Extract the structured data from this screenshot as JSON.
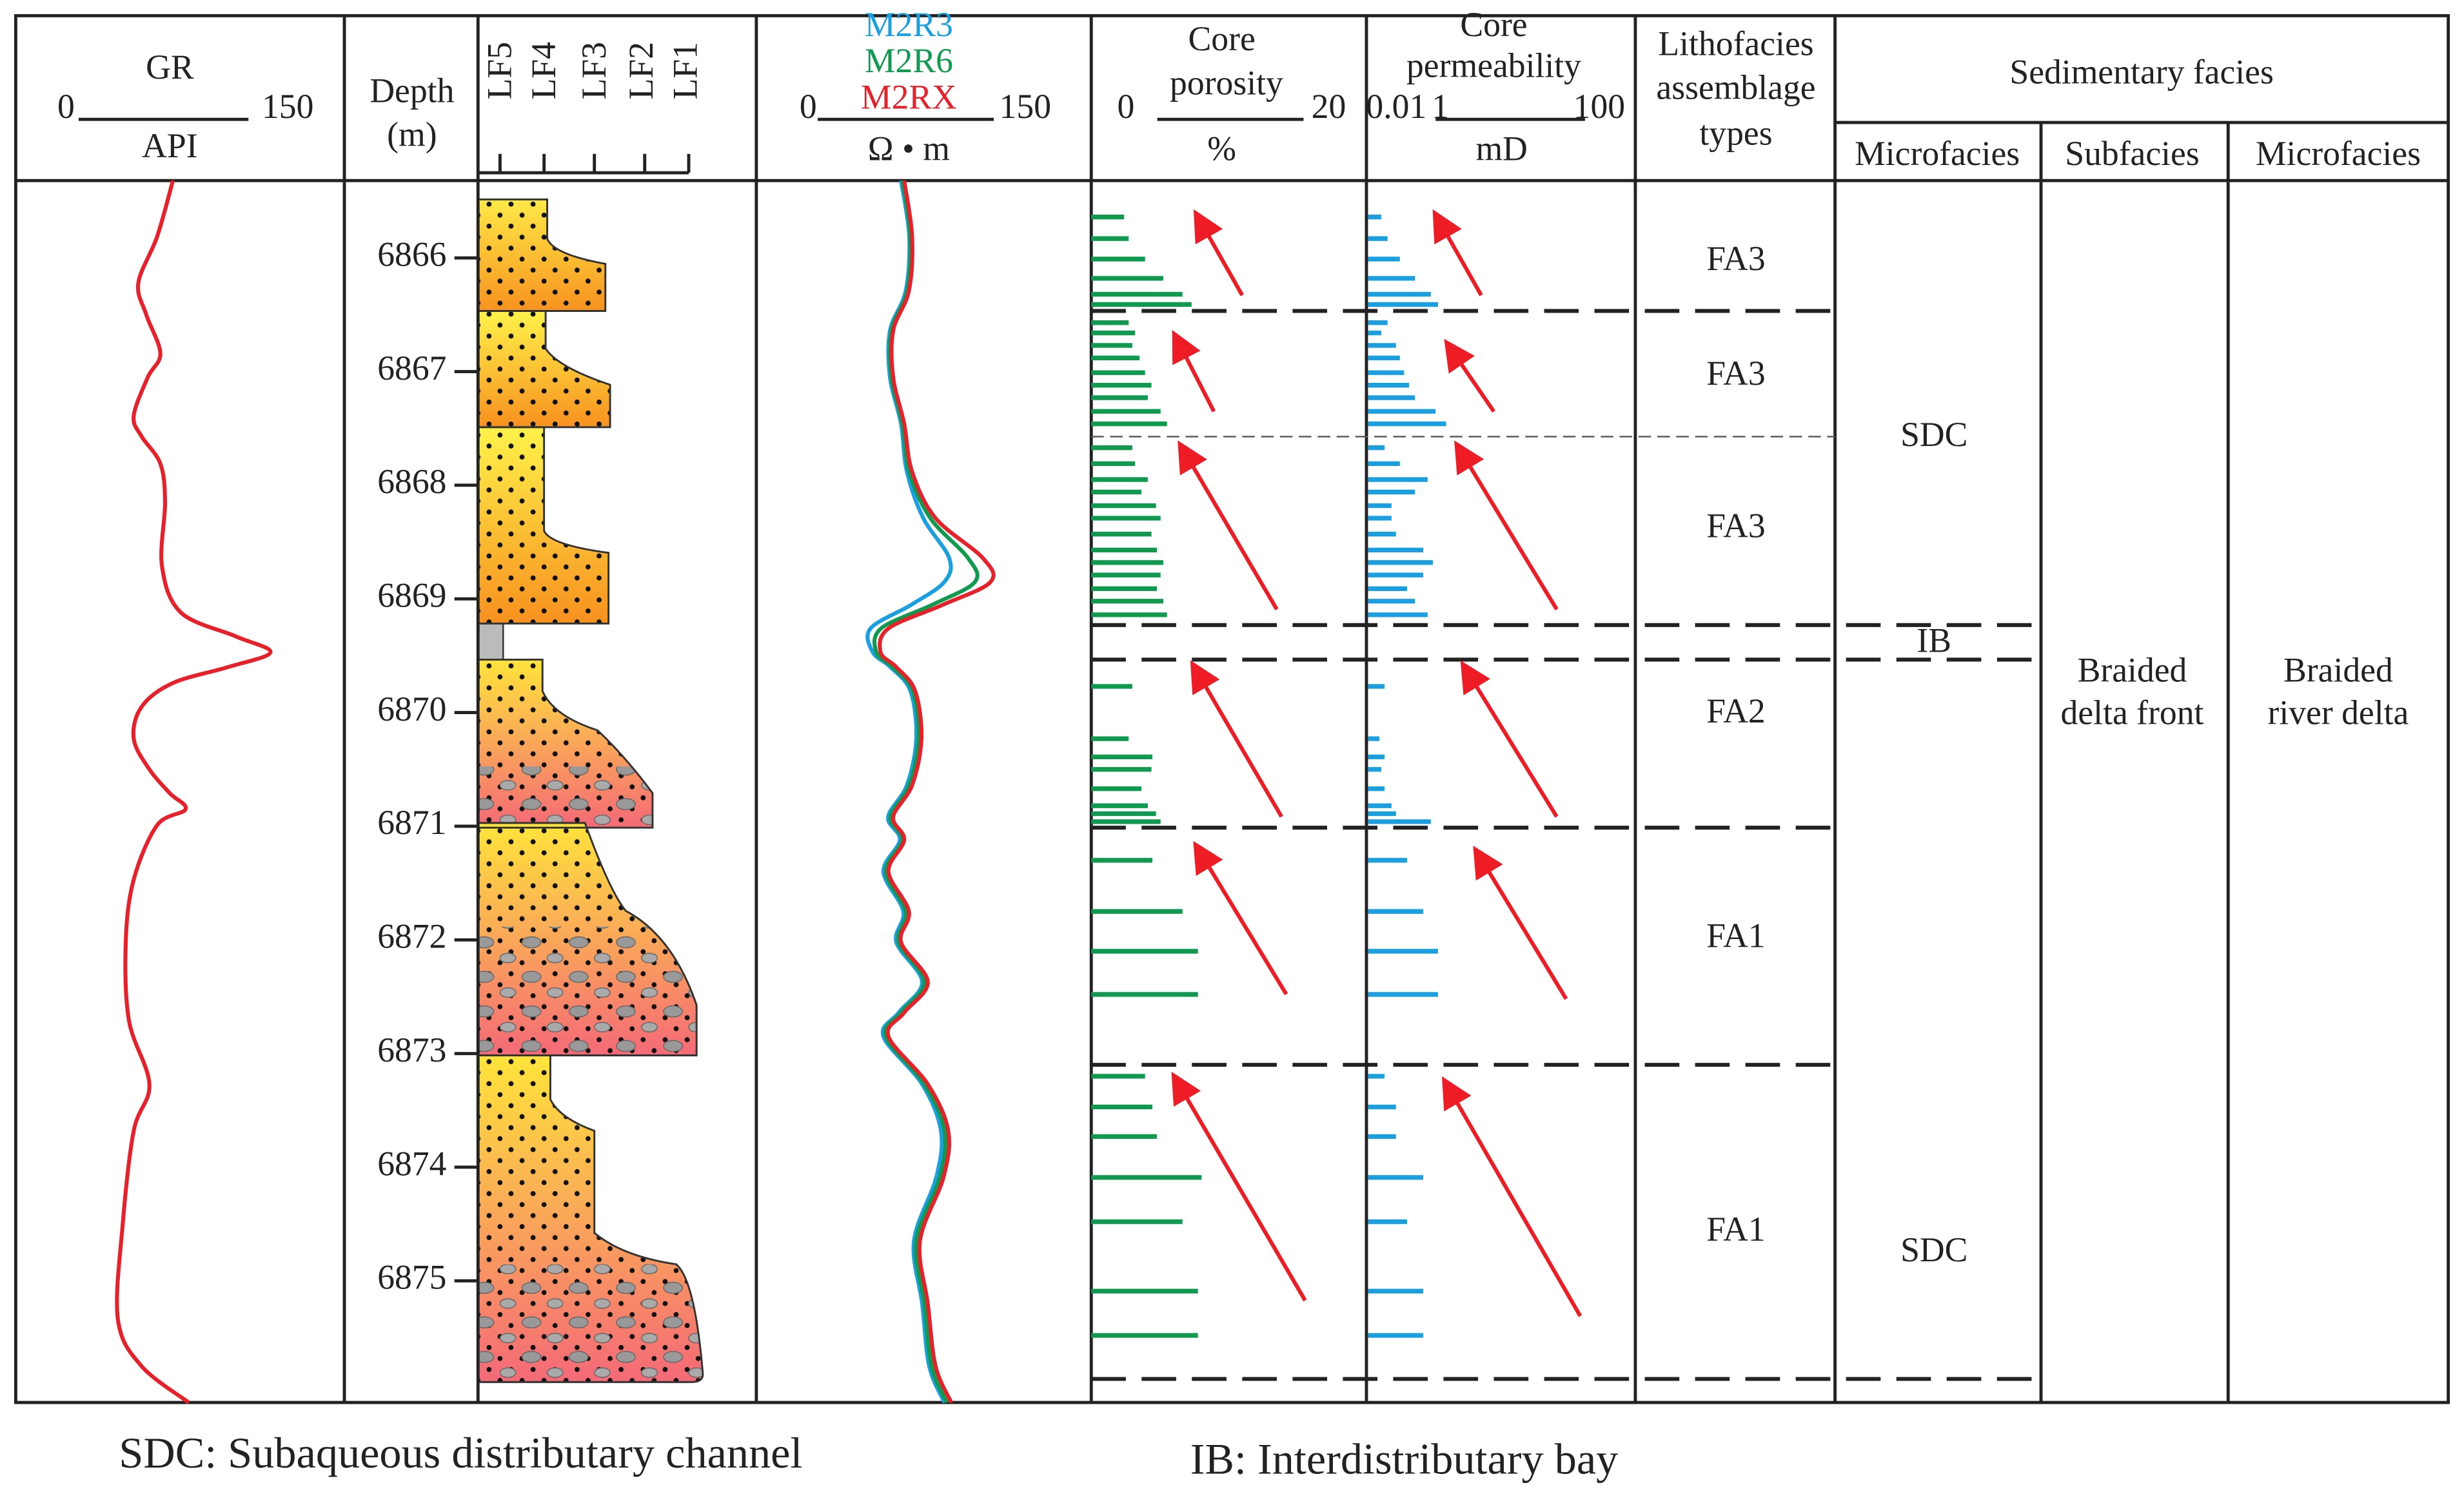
{
  "gr": {
    "name": "GR",
    "unit": "API",
    "xlim": [
      0,
      150
    ],
    "xticks": [
      0,
      150
    ],
    "color": "#e8202a",
    "depth": [
      6865.32,
      6865.81,
      6866.22,
      6866.5,
      6866.84,
      6867.05,
      6867.39,
      6867.57,
      6867.81,
      6868.15,
      6868.71,
      6869.12,
      6869.33,
      6869.47,
      6869.6,
      6869.74,
      6869.95,
      6870.23,
      6870.5,
      6870.71,
      6870.85,
      6870.99,
      6871.47,
      6872.02,
      6872.71,
      6873.27,
      6873.68,
      6874.51,
      6875.34,
      6875.75,
      6876.07
    ],
    "values": [
      84.5,
      70.9,
      54.5,
      61.4,
      73.6,
      62.7,
      50.5,
      57.3,
      73.6,
      77.7,
      75.0,
      91.4,
      139.1,
      169.1,
      132.3,
      84.5,
      57.3,
      50.5,
      64.1,
      81.8,
      95.5,
      70.9,
      50.5,
      43.6,
      46.4,
      64.1,
      50.5,
      40.9,
      36.8,
      57.3,
      98.2
    ]
  },
  "depth_axis": {
    "title": "Depth",
    "unit": "(m)",
    "lim": [
      6865.32,
      6876.07
    ],
    "ticks": [
      6866,
      6867,
      6868,
      6869,
      6870,
      6871,
      6872,
      6873,
      6874,
      6875
    ]
  },
  "lithology": {
    "ticks": [
      "LF5",
      "LF4",
      "LF3",
      "LF2",
      "LF1"
    ]
  },
  "resistivity": {
    "unit": "Ω • m",
    "xlim": [
      0,
      150
    ],
    "xticks": [
      0,
      150
    ],
    "depth": [
      6865.32,
      6865.81,
      6866.29,
      6866.64,
      6867.05,
      6867.46,
      6867.88,
      6868.29,
      6868.64,
      6868.85,
      6869.05,
      6869.26,
      6869.47,
      6869.6,
      6869.81,
      6870.23,
      6870.64,
      6870.92,
      6871.12,
      6871.4,
      6871.75,
      6872.02,
      6872.37,
      6872.64,
      6872.85,
      6873.27,
      6873.68,
      6874.09,
      6874.65,
      6875.2,
      6875.75,
      6876.07
    ],
    "series": [
      {
        "name": "M2R3",
        "color": "#1a9fe0",
        "values": [
          71,
          78,
          75,
          61.6,
          61.6,
          71,
          76,
          90,
          112,
          108,
          80,
          45,
          47,
          62,
          79,
          84,
          76,
          60,
          70,
          56,
          73,
          67,
          89,
          69,
          56,
          89,
          105,
          101,
          82,
          89,
          95,
          108
        ]
      },
      {
        "name": "M2R6",
        "color": "#0f9a50",
        "values": [
          72.3,
          79,
          76.3,
          62.9,
          62.9,
          72.3,
          78,
          96,
          128,
          134,
          98,
          54,
          50,
          64,
          81,
          86,
          78,
          62,
          72,
          58,
          75,
          69,
          91,
          71,
          58,
          91,
          108,
          104,
          84,
          91,
          97,
          110
        ]
      },
      {
        "name": "M2RX",
        "color": "#e8202a",
        "values": [
          73.7,
          80.4,
          77.7,
          64.3,
          64.3,
          73.7,
          80.4,
          100.4,
          140.6,
          147.3,
          107.1,
          60.3,
          53.6,
          67.0,
          83.0,
          88.4,
          80.4,
          64.3,
          73.7,
          60.3,
          77.7,
          71.0,
          93.8,
          73.7,
          60.3,
          93.8,
          111.2,
          107.1,
          87.1,
          93.8,
          100.4,
          113.8
        ]
      }
    ]
  },
  "porosity": {
    "title": [
      "Core",
      "porosity"
    ],
    "unit": "%",
    "xlim": [
      0,
      20
    ],
    "xticks": [
      0,
      20
    ],
    "color": "#0f9a50",
    "depth": [
      6865.64,
      6865.83,
      6866.01,
      6866.18,
      6866.32,
      6866.41,
      6866.57,
      6866.66,
      6866.77,
      6866.88,
      6867.01,
      6867.12,
      6867.23,
      6867.35,
      6867.46,
      6867.67,
      6867.81,
      6867.95,
      6868.06,
      6868.18,
      6868.29,
      6868.43,
      6868.57,
      6868.68,
      6868.79,
      6868.91,
      6869.02,
      6869.14,
      6869.77,
      6870.23,
      6870.39,
      6870.5,
      6870.67,
      6870.82,
      6870.89,
      6870.96,
      6871.3,
      6871.75,
      6872.1,
      6872.48,
      6873.2,
      6873.47,
      6873.73,
      6874.09,
      6874.48,
      6875.09,
      6875.48
    ],
    "values": [
      3.6,
      4.1,
      5.9,
      7.9,
      10.0,
      11.0,
      4.1,
      4.8,
      4.5,
      5.3,
      5.9,
      6.6,
      6.2,
      7.6,
      8.3,
      4.5,
      4.8,
      6.2,
      5.5,
      7.1,
      7.6,
      6.6,
      7.2,
      7.9,
      7.6,
      7.2,
      7.9,
      8.3,
      4.5,
      4.1,
      6.7,
      6.6,
      5.5,
      6.2,
      7.1,
      7.6,
      6.7,
      10.0,
      11.7,
      11.7,
      5.9,
      6.7,
      7.2,
      12.1,
      10.0,
      11.7,
      11.7
    ]
  },
  "permeability": {
    "title": [
      "Core",
      "permeability"
    ],
    "unit": "mD",
    "xlim": [
      0.01,
      100
    ],
    "xticks": [
      0.01,
      1,
      100
    ],
    "log": true,
    "color": "#1a9fe0",
    "depth": [
      6865.64,
      6865.83,
      6866.01,
      6866.18,
      6866.32,
      6866.41,
      6866.57,
      6866.66,
      6866.77,
      6866.88,
      6867.01,
      6867.12,
      6867.23,
      6867.35,
      6867.46,
      6867.67,
      6867.81,
      6867.95,
      6868.06,
      6868.18,
      6868.29,
      6868.43,
      6868.57,
      6868.68,
      6868.79,
      6868.91,
      6869.02,
      6869.14,
      6869.77,
      6870.23,
      6870.39,
      6870.5,
      6870.67,
      6870.82,
      6870.89,
      6870.96,
      6871.3,
      6871.75,
      6872.1,
      6872.48,
      6873.2,
      6873.47,
      6873.73,
      6874.09,
      6874.48,
      6875.09,
      6875.48
    ],
    "values": [
      0.016,
      0.02,
      0.031,
      0.053,
      0.093,
      0.12,
      0.02,
      0.016,
      0.027,
      0.031,
      0.036,
      0.043,
      0.053,
      0.11,
      0.16,
      0.018,
      0.031,
      0.083,
      0.053,
      0.023,
      0.023,
      0.027,
      0.071,
      0.1,
      0.071,
      0.04,
      0.053,
      0.083,
      0.018,
      0.015,
      0.018,
      0.016,
      0.018,
      0.023,
      0.027,
      0.093,
      0.04,
      0.071,
      0.12,
      0.12,
      0.018,
      0.027,
      0.027,
      0.071,
      0.04,
      0.071,
      0.071
    ]
  },
  "assemblage": {
    "title": [
      "Lithofacies",
      "assemblage",
      "types"
    ],
    "labels": [
      "FA3",
      "FA3",
      "FA3",
      "FA2",
      "FA1",
      "FA1"
    ]
  },
  "facies": {
    "title": "Sedimentary facies",
    "columns": [
      "Microfacies",
      "Subfacies",
      "Microfacies"
    ],
    "microfacies": [
      "SDC",
      "IB",
      "SDC"
    ],
    "subfacies": [
      "Braided",
      "delta front"
    ],
    "facies": [
      "Braided",
      "river delta"
    ]
  },
  "footnotes": [
    "SDC: Subaqueous distributary channel",
    "IB: Interdistributary bay"
  ]
}
